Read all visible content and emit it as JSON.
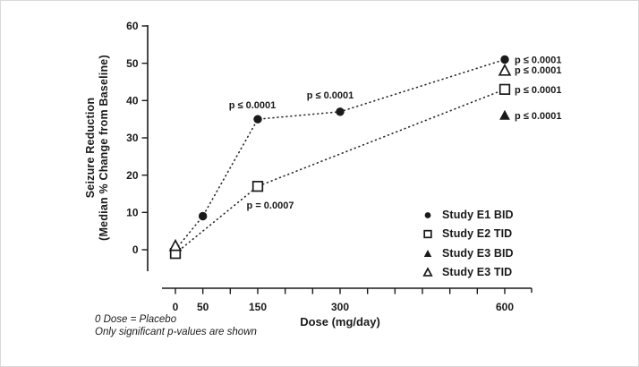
{
  "chart_data": {
    "type": "scatter",
    "title": "",
    "xlabel": "Dose (mg/day)",
    "ylabel": "Seizure Reduction (Median % Change from Baseline)",
    "ylabel_lines": [
      "Seizure Reduction",
      "(Median % Change from Baseline)"
    ],
    "x_axis": {
      "min": 0,
      "max": 600,
      "tick_step": 50,
      "labeled_ticks": [
        0,
        50,
        150,
        300,
        600
      ]
    },
    "y_axis": {
      "min": 0,
      "max": 60,
      "tick_step": 10
    },
    "grid": false,
    "legend_position": "inside-right",
    "colors": {
      "foreground": "#1a1a1a",
      "background": "#ffffff"
    },
    "series": [
      {
        "name": "Study E1 BID",
        "marker": "filled-circle",
        "line": "dotted",
        "points": [
          {
            "dose": 0,
            "value": 0,
            "marker_visible": false
          },
          {
            "dose": 50,
            "value": 9
          },
          {
            "dose": 150,
            "value": 35,
            "annotation": {
              "text": "p ≤ 0.0001",
              "anchor": "middle",
              "dx": -6,
              "dy": -12
            }
          },
          {
            "dose": 300,
            "value": 37,
            "annotation": {
              "text": "p ≤ 0.0001",
              "anchor": "middle",
              "dx": -11,
              "dy": -15
            }
          },
          {
            "dose": 600,
            "value": 51,
            "annotation": {
              "text": "p ≤ 0.0001",
              "anchor": "start",
              "dx": 11,
              "dy": 4
            }
          }
        ]
      },
      {
        "name": "Study E2 TID",
        "marker": "open-square",
        "line": "dotted",
        "points": [
          {
            "dose": 0,
            "value": -1
          },
          {
            "dose": 150,
            "value": 17,
            "annotation": {
              "text": "p = 0.0007",
              "anchor": "middle",
              "dx": 14,
              "dy": 25
            }
          },
          {
            "dose": 600,
            "value": 43,
            "annotation": {
              "text": "p ≤ 0.0001",
              "anchor": "start",
              "dx": 11,
              "dy": 4
            }
          }
        ]
      },
      {
        "name": "Study E3 BID",
        "marker": "filled-triangle",
        "line": "none",
        "points": [
          {
            "dose": 600,
            "value": 36,
            "annotation": {
              "text": "p ≤ 0.0001",
              "anchor": "start",
              "dx": 11,
              "dy": 4
            }
          }
        ]
      },
      {
        "name": "Study E3 TID",
        "marker": "open-triangle",
        "line": "none",
        "points": [
          {
            "dose": 0,
            "value": 1
          },
          {
            "dose": 600,
            "value": 48,
            "annotation": {
              "text": "p ≤ 0.0001",
              "anchor": "start",
              "dx": 11,
              "dy": 3
            }
          }
        ]
      }
    ],
    "footnotes": [
      "0 Dose = Placebo",
      "Only significant p-values are shown"
    ]
  }
}
